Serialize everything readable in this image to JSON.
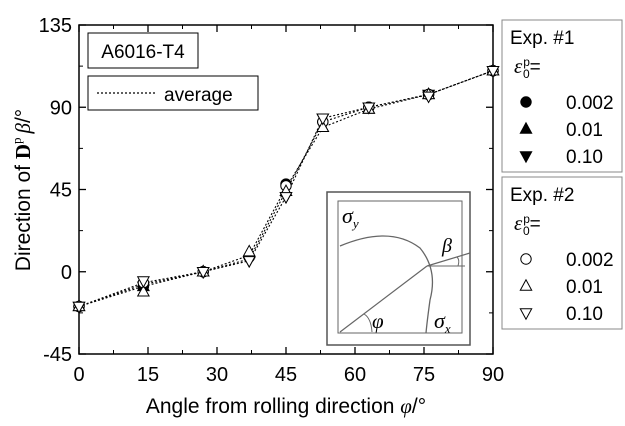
{
  "chart_data": {
    "type": "scatter",
    "ylabel_prefix": "Direction of ",
    "ylabel_bold": "D",
    "ylabel_sup": "p",
    "ylabel_symbol": "β",
    "ylabel_unit": "/°",
    "xlabel_text": "Angle from rolling direction ",
    "xlabel_symbol": "φ",
    "xlabel_unit": "/°",
    "xlim": [
      0,
      90
    ],
    "ylim": [
      -45,
      135
    ],
    "xticks": [
      "0",
      "15",
      "30",
      "45",
      "60",
      "75",
      "90"
    ],
    "yticks": [
      "-45",
      "0",
      "45",
      "90",
      "135"
    ],
    "material_label": "A6016-T4",
    "average_label": "average",
    "series": [
      {
        "name": "0.002",
        "marker": "filled-circle",
        "x": [
          0,
          14,
          27,
          37,
          45,
          53,
          63,
          76,
          90
        ],
        "y": [
          -19,
          -8,
          0,
          8,
          48,
          82,
          90,
          97,
          110
        ]
      },
      {
        "name": "0.01",
        "marker": "filled-triangle-up",
        "x": [
          0,
          14,
          27,
          37,
          45,
          53,
          63,
          76,
          90
        ],
        "y": [
          -19,
          -8,
          0,
          10,
          44,
          79,
          89,
          97,
          110
        ]
      },
      {
        "name": "0.10",
        "marker": "filled-triangle-down",
        "x": [
          0,
          14,
          27,
          37,
          45,
          53,
          63,
          76,
          90
        ],
        "y": [
          -19,
          -8,
          0,
          6,
          41,
          84,
          90,
          97,
          110
        ]
      },
      {
        "name": "0.002",
        "marker": "open-circle",
        "x": [
          0,
          14,
          27,
          37,
          45,
          53,
          63,
          76,
          90
        ],
        "y": [
          -19,
          -6,
          0,
          8,
          47,
          82,
          90,
          97,
          110
        ]
      },
      {
        "name": "0.01",
        "marker": "open-triangle-up",
        "x": [
          0,
          14,
          27,
          37,
          45,
          53,
          63,
          76,
          90
        ],
        "y": [
          -19,
          -11,
          0,
          11,
          44,
          79,
          89,
          97,
          110
        ]
      },
      {
        "name": "0.10",
        "marker": "open-triangle-down",
        "x": [
          0,
          14,
          27,
          37,
          45,
          53,
          63,
          76,
          90
        ],
        "y": [
          -19,
          -5,
          0,
          6,
          41,
          84,
          90,
          96,
          110
        ]
      }
    ],
    "average_lines": [
      {
        "x": [
          0,
          14,
          27,
          37,
          45,
          53,
          63,
          76,
          90
        ],
        "y": [
          -19,
          -8,
          0,
          7,
          44,
          82,
          90,
          97,
          110
        ]
      },
      {
        "x": [
          0,
          14,
          27,
          37,
          45,
          53,
          63,
          76,
          90
        ],
        "y": [
          -19,
          -7,
          0,
          9,
          46,
          79,
          89,
          97,
          110
        ]
      },
      {
        "x": [
          0,
          14,
          27,
          37,
          45,
          53,
          63,
          76,
          90
        ],
        "y": [
          -19,
          -6,
          0,
          6,
          41,
          84,
          90,
          97,
          110
        ]
      }
    ],
    "legend1": {
      "title": "Exp. #1",
      "eps_symbol": "ε",
      "eps_sup": "p",
      "eps_sub": "0",
      "eps_suffix": "=",
      "entries": [
        "0.002",
        "0.01",
        "0.10"
      ]
    },
    "legend2": {
      "title": "Exp. #2",
      "eps_symbol": "ε",
      "eps_sup": "p",
      "eps_sub": "0",
      "eps_suffix": "=",
      "entries": [
        "0.002",
        "0.01",
        "0.10"
      ]
    },
    "inset": {
      "sigma_y": "σ",
      "sigma_y_sub": "y",
      "sigma_x": "σ",
      "sigma_x_sub": "x",
      "beta": "β",
      "phi": "φ"
    },
    "grid": false,
    "legend_position": "right"
  }
}
